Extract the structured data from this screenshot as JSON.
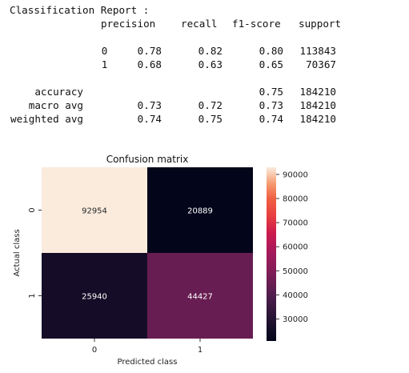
{
  "report": {
    "title": "Classification Report :",
    "headers": [
      "precision",
      "recall",
      "f1-score",
      "support"
    ],
    "rows": [
      {
        "label": "0",
        "precision": "0.78",
        "recall": "0.82",
        "f1": "0.80",
        "support": "113843"
      },
      {
        "label": "1",
        "precision": "0.68",
        "recall": "0.63",
        "f1": "0.65",
        "support": "70367"
      }
    ],
    "summary": [
      {
        "label": "accuracy",
        "precision": "",
        "recall": "",
        "f1": "0.75",
        "support": "184210"
      },
      {
        "label": "macro avg",
        "precision": "0.73",
        "recall": "0.72",
        "f1": "0.73",
        "support": "184210"
      },
      {
        "label": "weighted avg",
        "precision": "0.74",
        "recall": "0.75",
        "f1": "0.74",
        "support": "184210"
      }
    ]
  },
  "chart_data": {
    "type": "heatmap",
    "title": "Confusion matrix",
    "xlabel": "Predicted class",
    "ylabel": "Actual class",
    "x_categories": [
      "0",
      "1"
    ],
    "y_categories": [
      "0",
      "1"
    ],
    "values": [
      [
        92954,
        20889
      ],
      [
        25940,
        44427
      ]
    ],
    "colormap": "rocket",
    "colorbar": {
      "range": [
        20889,
        92954
      ],
      "ticks": [
        30000,
        40000,
        50000,
        60000,
        70000,
        80000,
        90000
      ]
    }
  },
  "colors": {
    "low": "#03051a",
    "high": "#faebdd"
  }
}
